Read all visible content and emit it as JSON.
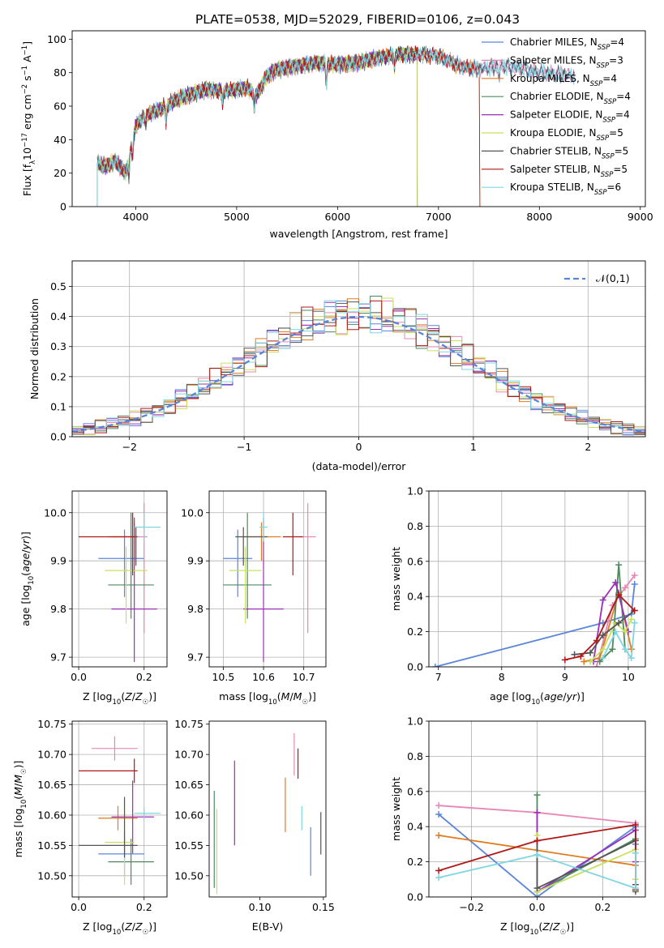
{
  "figure_title": "PLATE=0538, MJD=52029, FIBERID=0106, z=0.043",
  "colors": {
    "Chabrier MILES": "#5b85d9",
    "Salpeter MILES": "#e887b4",
    "Kroupa MILES": "#e07b20",
    "Chabrier ELODIE": "#4f8a5f",
    "Salpeter ELODIE": "#9a30b8",
    "Kroupa ELODIE": "#c8e060",
    "Chabrier STELIB": "#555555",
    "Salpeter STELIB": "#b01818",
    "Kroupa STELIB": "#7fd6e0"
  },
  "chart_data": [
    {
      "id": "spectrum",
      "type": "line",
      "title": "PLATE=0538, MJD=52029, FIBERID=0106, z=0.043",
      "xlabel": "wavelength [Angstrom, rest frame]",
      "ylabel": "Flux [f_λ10^-17 erg cm^-2 s^-1 A^-1]",
      "xlim": [
        3370,
        9050
      ],
      "ylim": [
        0,
        105
      ],
      "xticks": [
        4000,
        5000,
        6000,
        7000,
        8000,
        9000
      ],
      "yticks": [
        0,
        20,
        40,
        60,
        80,
        100
      ],
      "grid": false,
      "legend_position": "right",
      "continuum": {
        "x": [
          3620,
          3700,
          3800,
          3900,
          3950,
          4000,
          4100,
          4200,
          4300,
          4400,
          4500,
          4700,
          4860,
          5000,
          5100,
          5200,
          5300,
          5400,
          5600,
          5800,
          6000,
          6200,
          6400,
          6600,
          6800,
          7000,
          7200,
          7400,
          7600,
          7800,
          8000,
          8200,
          8400
        ],
        "y": [
          26,
          24,
          27,
          20,
          34,
          48,
          55,
          57,
          60,
          64,
          66,
          70,
          69,
          70,
          71,
          67,
          78,
          82,
          84,
          86,
          85,
          86,
          89,
          91,
          91,
          90,
          84,
          82,
          84,
          83,
          80,
          79,
          78
        ]
      },
      "dips": [
        [
          3933,
          12
        ],
        [
          3968,
          10
        ],
        [
          4100,
          6
        ],
        [
          4300,
          10
        ],
        [
          4861,
          8
        ],
        [
          5175,
          10
        ],
        [
          5890,
          14
        ],
        [
          6563,
          8
        ],
        [
          7600,
          8
        ]
      ],
      "series": [
        {
          "name": "Chabrier MILES",
          "nssp": "4",
          "x_end": 8350
        },
        {
          "name": "Salpeter MILES",
          "nssp": "3",
          "x_end": 8350
        },
        {
          "name": "Kroupa MILES",
          "nssp": "4",
          "x_end": 7410
        },
        {
          "name": "Chabrier ELODIE",
          "nssp": "4",
          "x_end": 6790
        },
        {
          "name": "Salpeter ELODIE",
          "nssp": "4",
          "x_end": 6790
        },
        {
          "name": "Kroupa ELODIE",
          "nssp": "5",
          "x_end": 6790
        },
        {
          "name": "Chabrier STELIB",
          "nssp": "5",
          "x_end": 8350
        },
        {
          "name": "Salpeter STELIB",
          "nssp": "5",
          "x_end": 7410
        },
        {
          "name": "Kroupa STELIB",
          "nssp": "6",
          "x_end": 8350
        }
      ]
    },
    {
      "id": "residuals",
      "type": "histogram",
      "xlabel": "(data-model)/error",
      "ylabel": "Normed distribution",
      "xlim": [
        -2.5,
        2.5
      ],
      "ylim": [
        0,
        0.585
      ],
      "xticks": [
        -2,
        -1,
        0,
        1,
        2
      ],
      "yticks": [
        0.0,
        0.1,
        0.2,
        0.3,
        0.4,
        0.5
      ],
      "grid": true,
      "legend": "N(0,1)",
      "legend_position": "top-right",
      "bin_width": 0.1,
      "reference": "standard normal"
    },
    {
      "id": "age-vs-z",
      "type": "errorbar",
      "xlabel": "Z [log10(Z/Z☉)]",
      "ylabel": "age  [log10(age/yr)]",
      "xlim": [
        -0.02,
        0.27
      ],
      "ylim": [
        9.68,
        10.045
      ],
      "xticks": [
        0.0,
        0.2
      ],
      "yticks": [
        9.7,
        9.8,
        9.9,
        10.0
      ],
      "grid": true,
      "points": [
        {
          "name": "Chabrier MILES",
          "x": 0.14,
          "xerr": [
            0.08,
            0.06
          ],
          "y": 9.905,
          "yerr": [
            0.08,
            0.06
          ]
        },
        {
          "name": "Salpeter MILES",
          "x": 0.2,
          "xerr": [
            0.1,
            0.01
          ],
          "y": 9.95,
          "yerr": [
            0.2,
            0.07
          ]
        },
        {
          "name": "Kroupa MILES",
          "x": 0.17,
          "xerr": [
            0.08,
            0.01
          ],
          "y": 9.95,
          "yerr": [
            0.05,
            0.03
          ]
        },
        {
          "name": "Chabrier ELODIE",
          "x": 0.16,
          "xerr": [
            0.07,
            0.07
          ],
          "y": 9.85,
          "yerr": [
            0.07,
            0.15
          ]
        },
        {
          "name": "Salpeter ELODIE",
          "x": 0.17,
          "xerr": [
            0.07,
            0.07
          ],
          "y": 9.8,
          "yerr": [
            0.11,
            0.19
          ]
        },
        {
          "name": "Kroupa ELODIE",
          "x": 0.145,
          "xerr": [
            0.065,
            0.065
          ],
          "y": 9.88,
          "yerr": [
            0.11,
            0.05
          ]
        },
        {
          "name": "Chabrier STELIB",
          "x": 0.175,
          "xerr": [
            0.005,
            0.005
          ],
          "y": 9.95,
          "yerr": [
            0.06,
            0.02
          ]
        },
        {
          "name": "Salpeter STELIB",
          "x": 0.165,
          "xerr": [
            0.165,
            0.005
          ],
          "y": 9.95,
          "yerr": [
            0.08,
            0.05
          ]
        },
        {
          "name": "Kroupa STELIB",
          "x": 0.2,
          "xerr": [
            0.03,
            0.05
          ],
          "y": 9.97,
          "yerr": [
            0.03,
            0.03
          ]
        }
      ]
    },
    {
      "id": "age-vs-mass",
      "type": "errorbar",
      "xlabel": "mass [log10(M/M☉)]",
      "ylabel": "",
      "xlim": [
        10.465,
        10.755
      ],
      "ylim": [
        9.68,
        10.045
      ],
      "xticks": [
        10.5,
        10.6,
        10.7
      ],
      "yticks": [
        9.7,
        9.8,
        9.9,
        10.0
      ],
      "grid": true,
      "points": [
        {
          "name": "Chabrier MILES",
          "x": 10.536,
          "xerr": [
            0.036,
            0.036
          ],
          "y": 9.905,
          "yerr": [
            0.08,
            0.06
          ]
        },
        {
          "name": "Salpeter MILES",
          "x": 10.71,
          "xerr": [
            0.02,
            0.02
          ],
          "y": 9.95,
          "yerr": [
            0.2,
            0.07
          ]
        },
        {
          "name": "Kroupa MILES",
          "x": 10.595,
          "xerr": [
            0.048,
            0.048
          ],
          "y": 9.95,
          "yerr": [
            0.05,
            0.03
          ]
        },
        {
          "name": "Chabrier ELODIE",
          "x": 10.56,
          "xerr": [
            0.06,
            0.06
          ],
          "y": 9.85,
          "yerr": [
            0.07,
            0.15
          ]
        },
        {
          "name": "Salpeter ELODIE",
          "x": 10.6,
          "xerr": [
            0.05,
            0.05
          ],
          "y": 9.8,
          "yerr": [
            0.11,
            0.19
          ]
        },
        {
          "name": "Kroupa ELODIE",
          "x": 10.555,
          "xerr": [
            0.04,
            0.04
          ],
          "y": 9.88,
          "yerr": [
            0.11,
            0.05
          ]
        },
        {
          "name": "Chabrier STELIB",
          "x": 10.55,
          "xerr": [
            0.02,
            0.06
          ],
          "y": 9.95,
          "yerr": [
            0.06,
            0.02
          ]
        },
        {
          "name": "Salpeter STELIB",
          "x": 10.673,
          "xerr": [
            0.025,
            0.025
          ],
          "y": 9.95,
          "yerr": [
            0.08,
            0.05
          ]
        },
        {
          "name": "Kroupa STELIB",
          "x": 10.6,
          "xerr": [
            0.01,
            0.01
          ],
          "y": 9.97,
          "yerr": [
            0.03,
            0.03
          ]
        }
      ]
    },
    {
      "id": "weight-vs-age",
      "type": "line",
      "xlabel": "age  [log10(age/yr)]",
      "ylabel": "mass weight",
      "xlim": [
        6.85,
        10.27
      ],
      "ylim": [
        0,
        1.0
      ],
      "xticks": [
        7,
        8,
        9,
        10
      ],
      "yticks": [
        0.0,
        0.2,
        0.4,
        0.6,
        0.8,
        1.0
      ],
      "grid": true,
      "series": [
        {
          "name": "Chabrier MILES",
          "x": [
            6.95,
            9.6,
            10.05,
            10.1
          ],
          "y": [
            0.0,
            0.25,
            0.3,
            0.47
          ]
        },
        {
          "name": "Salpeter MILES",
          "x": [
            9.5,
            9.75,
            9.95,
            10.1
          ],
          "y": [
            0.0,
            0.35,
            0.45,
            0.52
          ]
        },
        {
          "name": "Kroupa MILES",
          "x": [
            9.3,
            9.55,
            9.85,
            10.05
          ],
          "y": [
            0.03,
            0.05,
            0.42,
            0.1
          ]
        },
        {
          "name": "Chabrier ELODIE",
          "x": [
            9.55,
            9.75,
            9.85,
            9.95
          ],
          "y": [
            0.03,
            0.1,
            0.58,
            0.1
          ]
        },
        {
          "name": "Salpeter ELODIE",
          "x": [
            9.45,
            9.6,
            9.8,
            10.0
          ],
          "y": [
            0.03,
            0.38,
            0.48,
            0.2
          ]
        },
        {
          "name": "Kroupa ELODIE",
          "x": [
            9.4,
            9.6,
            9.8,
            9.95,
            10.05
          ],
          "y": [
            0.03,
            0.1,
            0.25,
            0.2,
            0.27
          ]
        },
        {
          "name": "Chabrier STELIB",
          "x": [
            9.15,
            9.4,
            9.6,
            9.85,
            10.1
          ],
          "y": [
            0.07,
            0.08,
            0.18,
            0.25,
            0.32
          ]
        },
        {
          "name": "Salpeter STELIB",
          "x": [
            9.0,
            9.25,
            9.5,
            9.85,
            10.1
          ],
          "y": [
            0.04,
            0.06,
            0.15,
            0.41,
            0.32
          ]
        },
        {
          "name": "Kroupa STELIB",
          "x": [
            9.6,
            9.8,
            9.95,
            10.05,
            10.1
          ],
          "y": [
            0.05,
            0.2,
            0.1,
            0.05,
            0.25
          ]
        }
      ]
    },
    {
      "id": "mass-vs-z",
      "type": "errorbar",
      "xlabel": "Z [log10(Z/Z☉)]",
      "ylabel": "mass [log10(M/M☉)]",
      "xlim": [
        -0.02,
        0.27
      ],
      "ylim": [
        10.465,
        10.755
      ],
      "xticks": [
        0.0,
        0.2
      ],
      "yticks": [
        10.5,
        10.55,
        10.6,
        10.65,
        10.7,
        10.75
      ],
      "grid": true,
      "points": [
        {
          "name": "Chabrier MILES",
          "x": 0.14,
          "xerr": [
            0.08,
            0.06
          ],
          "y": 10.536,
          "yerr": [
            0.036,
            0.036
          ]
        },
        {
          "name": "Salpeter MILES",
          "x": 0.11,
          "xerr": [
            0.07,
            0.07
          ],
          "y": 10.71,
          "yerr": [
            0.02,
            0.02
          ]
        },
        {
          "name": "Kroupa MILES",
          "x": 0.12,
          "xerr": [
            0.06,
            0.06
          ],
          "y": 10.595,
          "yerr": [
            0.02,
            0.02
          ]
        },
        {
          "name": "Chabrier ELODIE",
          "x": 0.16,
          "xerr": [
            0.07,
            0.07
          ],
          "y": 10.523,
          "yerr": [
            0.038,
            0.038
          ]
        },
        {
          "name": "Salpeter ELODIE",
          "x": 0.165,
          "xerr": [
            0.065,
            0.065
          ],
          "y": 10.597,
          "yerr": [
            0.06,
            0.06
          ]
        },
        {
          "name": "Kroupa ELODIE",
          "x": 0.14,
          "xerr": [
            0.06,
            0.03
          ],
          "y": 10.555,
          "yerr": [
            0.07,
            0.07
          ]
        },
        {
          "name": "Chabrier STELIB",
          "x": 0.14,
          "xerr": [
            0.14,
            0.04
          ],
          "y": 10.55,
          "yerr": [
            0.02,
            0.08
          ]
        },
        {
          "name": "Salpeter STELIB",
          "x": 0.17,
          "xerr": [
            0.17,
            0.01
          ],
          "y": 10.673,
          "yerr": [
            0.02,
            0.02
          ]
        },
        {
          "name": "Kroupa STELIB",
          "x": 0.2,
          "xerr": [
            0.03,
            0.05
          ],
          "y": 10.603,
          "yerr": [
            0.01,
            0.01
          ]
        }
      ]
    },
    {
      "id": "mass-vs-ebv",
      "type": "errorbar",
      "xlabel": "E(B-V)",
      "ylabel": "",
      "xlim": [
        0.06,
        0.152
      ],
      "ylim": [
        10.465,
        10.755
      ],
      "xticks": [
        0.1,
        0.15
      ],
      "yticks": [
        10.5,
        10.55,
        10.6,
        10.65,
        10.7,
        10.75
      ],
      "grid": false,
      "points": [
        {
          "name": "Chabrier MILES",
          "x": 0.14,
          "y": 10.54,
          "yerr": [
            0.04,
            0.04
          ]
        },
        {
          "name": "Salpeter MILES",
          "x": 0.127,
          "y": 10.7,
          "yerr": [
            0.035,
            0.035
          ]
        },
        {
          "name": "Kroupa MILES",
          "x": 0.12,
          "y": 10.617,
          "yerr": [
            0.045,
            0.045
          ]
        },
        {
          "name": "Chabrier ELODIE",
          "x": 0.064,
          "y": 10.56,
          "yerr": [
            0.08,
            0.08
          ]
        },
        {
          "name": "Salpeter ELODIE",
          "x": 0.08,
          "y": 10.62,
          "yerr": [
            0.07,
            0.07
          ]
        },
        {
          "name": "Kroupa ELODIE",
          "x": 0.066,
          "y": 10.54,
          "yerr": [
            0.07,
            0.07
          ]
        },
        {
          "name": "Chabrier STELIB",
          "x": 0.148,
          "y": 10.57,
          "yerr": [
            0.035,
            0.035
          ]
        },
        {
          "name": "Salpeter STELIB",
          "x": 0.13,
          "y": 10.685,
          "yerr": [
            0.025,
            0.025
          ]
        },
        {
          "name": "Kroupa STELIB",
          "x": 0.133,
          "y": 10.595,
          "yerr": [
            0.02,
            0.02
          ]
        }
      ]
    },
    {
      "id": "weight-vs-z",
      "type": "line",
      "xlabel": "Z [log10(Z/Z☉)]",
      "ylabel": "mass weight",
      "xlim": [
        -0.33,
        0.33
      ],
      "ylim": [
        0,
        1.0
      ],
      "xticks": [
        -0.2,
        0.0,
        0.2
      ],
      "yticks": [
        0.0,
        0.2,
        0.4,
        0.6,
        0.8,
        1.0
      ],
      "grid": true,
      "series": [
        {
          "name": "Chabrier MILES",
          "x": [
            -0.3,
            0.0,
            0.3,
            0.3
          ],
          "y": [
            0.47,
            0.0,
            0.4,
            0.3
          ]
        },
        {
          "name": "Salpeter MILES",
          "x": [
            -0.3,
            0.0,
            0.3
          ],
          "y": [
            0.52,
            0.48,
            0.42
          ]
        },
        {
          "name": "Kroupa MILES",
          "x": [
            -0.3,
            0.3
          ],
          "y": [
            0.35,
            0.18
          ]
        },
        {
          "name": "Chabrier ELODIE",
          "x": [
            0.0,
            0.0,
            0.3,
            0.3
          ],
          "y": [
            0.58,
            0.03,
            0.33,
            0.03
          ]
        },
        {
          "name": "Salpeter ELODIE",
          "x": [
            0.0,
            0.0,
            0.3,
            0.3
          ],
          "y": [
            0.48,
            0.03,
            0.38,
            0.2
          ]
        },
        {
          "name": "Kroupa ELODIE",
          "x": [
            0.0,
            0.0,
            0.3,
            0.3
          ],
          "y": [
            0.35,
            0.03,
            0.27,
            0.1
          ]
        },
        {
          "name": "Chabrier STELIB",
          "x": [
            0.0,
            0.0,
            0.3,
            0.3
          ],
          "y": [
            0.32,
            0.05,
            0.32,
            0.07
          ]
        },
        {
          "name": "Salpeter STELIB",
          "x": [
            -0.3,
            0.0,
            0.3,
            0.3
          ],
          "y": [
            0.15,
            0.32,
            0.41,
            0.04
          ]
        },
        {
          "name": "Kroupa STELIB",
          "x": [
            -0.3,
            0.0,
            0.3,
            0.3
          ],
          "y": [
            0.11,
            0.24,
            0.05,
            0.25
          ]
        }
      ]
    }
  ]
}
